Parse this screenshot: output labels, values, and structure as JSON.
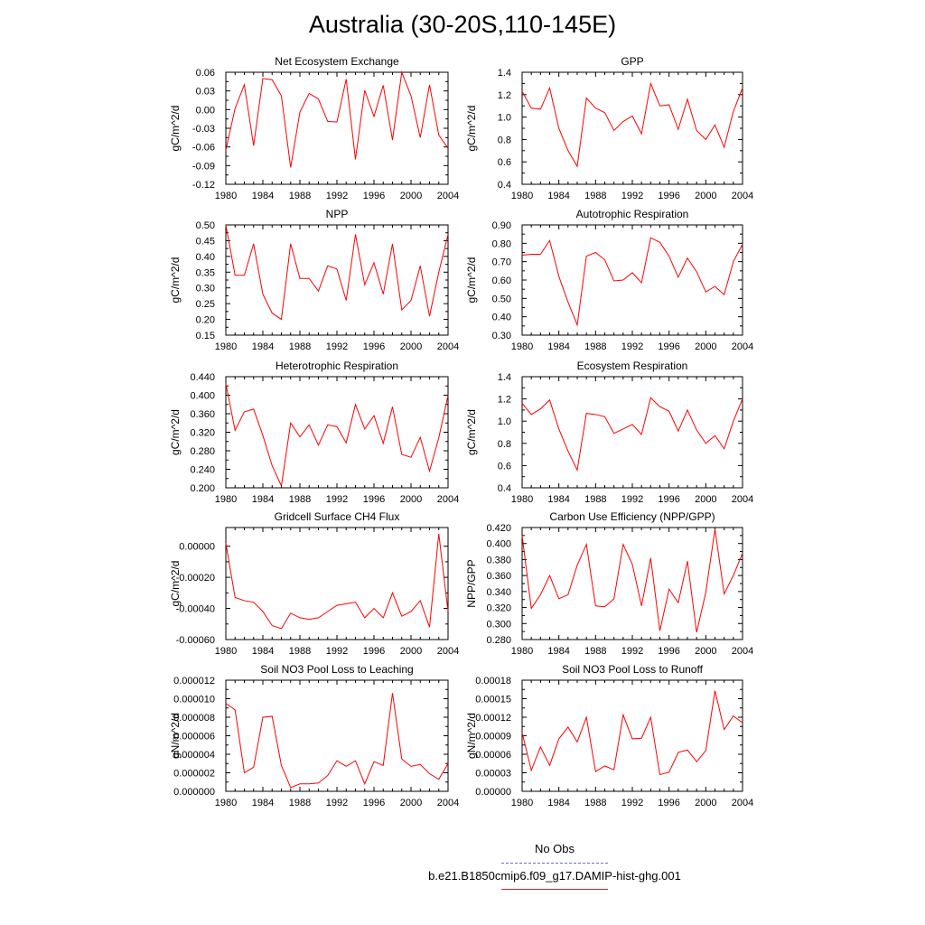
{
  "page": {
    "title": "Australia (30-20S,110-145E)"
  },
  "legend": {
    "items": [
      {
        "label": "No Obs",
        "color": "#6b6bd6",
        "style": "dashed"
      },
      {
        "label": "b.e21.B1850cmip6.f09_g17.DAMIP-hist-ghg.001",
        "color": "#e8202a",
        "style": "solid"
      }
    ]
  },
  "colors": {
    "series": "#ff0000",
    "axis": "#000000"
  },
  "chart_data": [
    {
      "type": "line",
      "title": "Net Ecosystem Exchange",
      "ylabel": "gC/m^2/d",
      "ylim": [
        -0.12,
        0.06
      ],
      "yticks": [
        "-0.12",
        "-0.09",
        "-0.06",
        "-0.03",
        "0.00",
        "0.03",
        "0.06"
      ],
      "xticks": [
        "1980",
        "1984",
        "1988",
        "1992",
        "1996",
        "2000",
        "2004"
      ],
      "x": [
        1980,
        1981,
        1982,
        1983,
        1984,
        1985,
        1986,
        1987,
        1988,
        1989,
        1990,
        1991,
        1992,
        1993,
        1994,
        1995,
        1996,
        1997,
        1998,
        1999,
        2000,
        2001,
        2002,
        2003,
        2004
      ],
      "series": [
        {
          "values": [
            -0.065,
            0.002,
            0.04,
            -0.058,
            0.05,
            0.048,
            0.022,
            -0.093,
            -0.004,
            0.026,
            0.017,
            -0.019,
            -0.02,
            0.049,
            -0.08,
            0.031,
            -0.011,
            0.039,
            -0.049,
            0.06,
            0.022,
            -0.045,
            0.04,
            -0.041,
            -0.062
          ]
        }
      ]
    },
    {
      "type": "line",
      "title": "GPP",
      "ylabel": "gC/m^2/d",
      "ylim": [
        0.4,
        1.4
      ],
      "yticks": [
        "0.4",
        "0.6",
        "0.8",
        "1.0",
        "1.2",
        "1.4"
      ],
      "xticks": [
        "1980",
        "1984",
        "1988",
        "1992",
        "1996",
        "2000",
        "2004"
      ],
      "x": [
        1980,
        1981,
        1982,
        1983,
        1984,
        1985,
        1986,
        1987,
        1988,
        1989,
        1990,
        1991,
        1992,
        1993,
        1994,
        1995,
        1996,
        1997,
        1998,
        1999,
        2000,
        2001,
        2002,
        2003,
        2004
      ],
      "series": [
        {
          "values": [
            1.23,
            1.08,
            1.07,
            1.26,
            0.9,
            0.7,
            0.56,
            1.17,
            1.08,
            1.04,
            0.88,
            0.96,
            1.01,
            0.85,
            1.3,
            1.1,
            1.11,
            0.89,
            1.16,
            0.88,
            0.8,
            0.93,
            0.73,
            1.05,
            1.26
          ]
        }
      ]
    },
    {
      "type": "line",
      "title": "NPP",
      "ylabel": "gC/m^2/d",
      "ylim": [
        0.15,
        0.5
      ],
      "yticks": [
        "0.15",
        "0.20",
        "0.25",
        "0.30",
        "0.35",
        "0.40",
        "0.45",
        "0.50"
      ],
      "xticks": [
        "1980",
        "1984",
        "1988",
        "1992",
        "1996",
        "2000",
        "2004"
      ],
      "x": [
        1980,
        1981,
        1982,
        1983,
        1984,
        1985,
        1986,
        1987,
        1988,
        1989,
        1990,
        1991,
        1992,
        1993,
        1994,
        1995,
        1996,
        1997,
        1998,
        1999,
        2000,
        2001,
        2002,
        2003,
        2004
      ],
      "series": [
        {
          "values": [
            0.5,
            0.34,
            0.34,
            0.44,
            0.28,
            0.22,
            0.2,
            0.44,
            0.33,
            0.33,
            0.29,
            0.37,
            0.36,
            0.26,
            0.47,
            0.31,
            0.38,
            0.28,
            0.44,
            0.23,
            0.26,
            0.37,
            0.21,
            0.35,
            0.47
          ]
        }
      ]
    },
    {
      "type": "line",
      "title": "Autotrophic Respiration",
      "ylabel": "gC/m^2/d",
      "ylim": [
        0.3,
        0.9
      ],
      "yticks": [
        "0.30",
        "0.40",
        "0.50",
        "0.60",
        "0.70",
        "0.80",
        "0.90"
      ],
      "xticks": [
        "1980",
        "1984",
        "1988",
        "1992",
        "1996",
        "2000",
        "2004"
      ],
      "x": [
        1980,
        1981,
        1982,
        1983,
        1984,
        1985,
        1986,
        1987,
        1988,
        1989,
        1990,
        1991,
        1992,
        1993,
        1994,
        1995,
        1996,
        1997,
        1998,
        1999,
        2000,
        2001,
        2002,
        2003,
        2004
      ],
      "series": [
        {
          "values": [
            0.735,
            0.74,
            0.74,
            0.815,
            0.62,
            0.48,
            0.355,
            0.73,
            0.75,
            0.71,
            0.595,
            0.6,
            0.64,
            0.585,
            0.83,
            0.805,
            0.73,
            0.615,
            0.72,
            0.645,
            0.535,
            0.565,
            0.52,
            0.7,
            0.795
          ]
        }
      ]
    },
    {
      "type": "line",
      "title": "Heterotrophic Respiration",
      "ylabel": "gC/m^2/d",
      "ylim": [
        0.2,
        0.44
      ],
      "yticks": [
        "0.200",
        "0.240",
        "0.280",
        "0.320",
        "0.360",
        "0.400",
        "0.440"
      ],
      "xticks": [
        "1980",
        "1984",
        "1988",
        "1992",
        "1996",
        "2000",
        "2004"
      ],
      "x": [
        1980,
        1981,
        1982,
        1983,
        1984,
        1985,
        1986,
        1987,
        1988,
        1989,
        1990,
        1991,
        1992,
        1993,
        1994,
        1995,
        1996,
        1997,
        1998,
        1999,
        2000,
        2001,
        2002,
        2003,
        2004
      ],
      "series": [
        {
          "values": [
            0.425,
            0.324,
            0.364,
            0.37,
            0.313,
            0.248,
            0.204,
            0.34,
            0.31,
            0.336,
            0.292,
            0.336,
            0.332,
            0.297,
            0.38,
            0.327,
            0.356,
            0.296,
            0.375,
            0.272,
            0.266,
            0.309,
            0.236,
            0.308,
            0.4
          ]
        }
      ]
    },
    {
      "type": "line",
      "title": "Ecosystem Respiration",
      "ylabel": "gC/m^2/d",
      "ylim": [
        0.4,
        1.4
      ],
      "yticks": [
        "0.4",
        "0.6",
        "0.8",
        "1.0",
        "1.2",
        "1.4"
      ],
      "xticks": [
        "1980",
        "1984",
        "1988",
        "1992",
        "1996",
        "2000",
        "2004"
      ],
      "x": [
        1980,
        1981,
        1982,
        1983,
        1984,
        1985,
        1986,
        1987,
        1988,
        1989,
        1990,
        1991,
        1992,
        1993,
        1994,
        1995,
        1996,
        1997,
        1998,
        1999,
        2000,
        2001,
        2002,
        2003,
        2004
      ],
      "series": [
        {
          "values": [
            1.16,
            1.06,
            1.11,
            1.19,
            0.93,
            0.73,
            0.56,
            1.07,
            1.06,
            1.04,
            0.89,
            0.93,
            0.97,
            0.88,
            1.21,
            1.13,
            1.09,
            0.91,
            1.1,
            0.92,
            0.8,
            0.87,
            0.75,
            1.0,
            1.2
          ]
        }
      ]
    },
    {
      "type": "line",
      "title": "Gridcell Surface CH4 Flux",
      "ylabel": "gC/m^2/d",
      "ylim": [
        -0.0006,
        0.00012
      ],
      "yticks": [
        "-0.00060",
        "-0.00040",
        "-0.00020",
        "0.00000"
      ],
      "ytick_values": [
        -0.0006,
        -0.0004,
        -0.0002,
        0.0
      ],
      "xticks": [
        "1980",
        "1984",
        "1988",
        "1992",
        "1996",
        "2000",
        "2004"
      ],
      "x": [
        1980,
        1981,
        1982,
        1983,
        1984,
        1985,
        1986,
        1987,
        1988,
        1989,
        1990,
        1991,
        1992,
        1993,
        1994,
        1995,
        1996,
        1997,
        1998,
        1999,
        2000,
        2001,
        2002,
        2003,
        2004
      ],
      "series": [
        {
          "values": [
            2e-05,
            -0.00033,
            -0.00035,
            -0.00036,
            -0.00042,
            -0.00051,
            -0.00053,
            -0.00043,
            -0.00046,
            -0.00047,
            -0.00046,
            -0.00042,
            -0.00038,
            -0.00037,
            -0.00036,
            -0.00046,
            -0.0004,
            -0.00046,
            -0.0003,
            -0.00045,
            -0.00042,
            -0.00035,
            -0.00052,
            8e-05,
            -0.00042
          ]
        }
      ]
    },
    {
      "type": "line",
      "title": "Carbon Use Efficiency (NPP/GPP)",
      "ylabel": "NPP/GPP",
      "ylim": [
        0.28,
        0.42
      ],
      "yticks": [
        "0.280",
        "0.300",
        "0.320",
        "0.340",
        "0.360",
        "0.380",
        "0.400",
        "0.420"
      ],
      "xticks": [
        "1980",
        "1984",
        "1988",
        "1992",
        "1996",
        "2000",
        "2004"
      ],
      "x": [
        1980,
        1981,
        1982,
        1983,
        1984,
        1985,
        1986,
        1987,
        1988,
        1989,
        1990,
        1991,
        1992,
        1993,
        1994,
        1995,
        1996,
        1997,
        1998,
        1999,
        2000,
        2001,
        2002,
        2003,
        2004
      ],
      "series": [
        {
          "values": [
            0.41,
            0.319,
            0.336,
            0.36,
            0.331,
            0.336,
            0.373,
            0.399,
            0.322,
            0.321,
            0.331,
            0.399,
            0.374,
            0.322,
            0.382,
            0.291,
            0.343,
            0.326,
            0.378,
            0.289,
            0.339,
            0.418,
            0.337,
            0.36,
            0.388
          ]
        }
      ]
    },
    {
      "type": "line",
      "title": "Soil NO3 Pool Loss to Leaching",
      "ylabel": "gN/m^2/d",
      "ylim": [
        0,
        1.2e-05
      ],
      "yticks": [
        "0.000000",
        "0.000002",
        "0.000004",
        "0.000006",
        "0.000008",
        "0.000010",
        "0.000012"
      ],
      "ytick_values": [
        0,
        2e-06,
        4e-06,
        6e-06,
        8e-06,
        1e-05,
        1.2e-05
      ],
      "xticks": [
        "1980",
        "1984",
        "1988",
        "1992",
        "1996",
        "2000",
        "2004"
      ],
      "x": [
        1980,
        1981,
        1982,
        1983,
        1984,
        1985,
        1986,
        1987,
        1988,
        1989,
        1990,
        1991,
        1992,
        1993,
        1994,
        1995,
        1996,
        1997,
        1998,
        1999,
        2000,
        2001,
        2002,
        2003,
        2004
      ],
      "series": [
        {
          "values": [
            9.5e-06,
            8.8e-06,
            2e-06,
            2.6e-06,
            8e-06,
            8.1e-06,
            2.8e-06,
            4e-07,
            8e-07,
            8e-07,
            9e-07,
            1.7e-06,
            3.3e-06,
            2.7e-06,
            3.3e-06,
            8e-07,
            3.2e-06,
            2.8e-06,
            1.06e-05,
            3.5e-06,
            2.7e-06,
            2.9e-06,
            1.9e-06,
            1.3e-06,
            3e-06
          ]
        }
      ]
    },
    {
      "type": "line",
      "title": "Soil NO3 Pool Loss to Runoff",
      "ylabel": "gN/m^2/d",
      "ylim": [
        0,
        0.00018
      ],
      "yticks": [
        "0.00000",
        "0.00003",
        "0.00006",
        "0.00009",
        "0.00012",
        "0.00015",
        "0.00018"
      ],
      "ytick_values": [
        0,
        3e-05,
        6e-05,
        9e-05,
        0.00012,
        0.00015,
        0.00018
      ],
      "xticks": [
        "1980",
        "1984",
        "1988",
        "1992",
        "1996",
        "2000",
        "2004"
      ],
      "x": [
        1980,
        1981,
        1982,
        1983,
        1984,
        1985,
        1986,
        1987,
        1988,
        1989,
        1990,
        1991,
        1992,
        1993,
        1994,
        1995,
        1996,
        1997,
        1998,
        1999,
        2000,
        2001,
        2002,
        2003,
        2004
      ],
      "series": [
        {
          "values": [
            9.5e-05,
            3.4e-05,
            7.2e-05,
            4.2e-05,
            8.5e-05,
            0.000104,
            8e-05,
            0.00012,
            3.2e-05,
            4.1e-05,
            3.5e-05,
            0.000124,
            8.5e-05,
            8.6e-05,
            0.00012,
            2.7e-05,
            3.1e-05,
            6.3e-05,
            6.7e-05,
            4.8e-05,
            6.6e-05,
            0.000163,
            0.0001,
            0.000122,
            0.000111
          ]
        }
      ]
    }
  ]
}
